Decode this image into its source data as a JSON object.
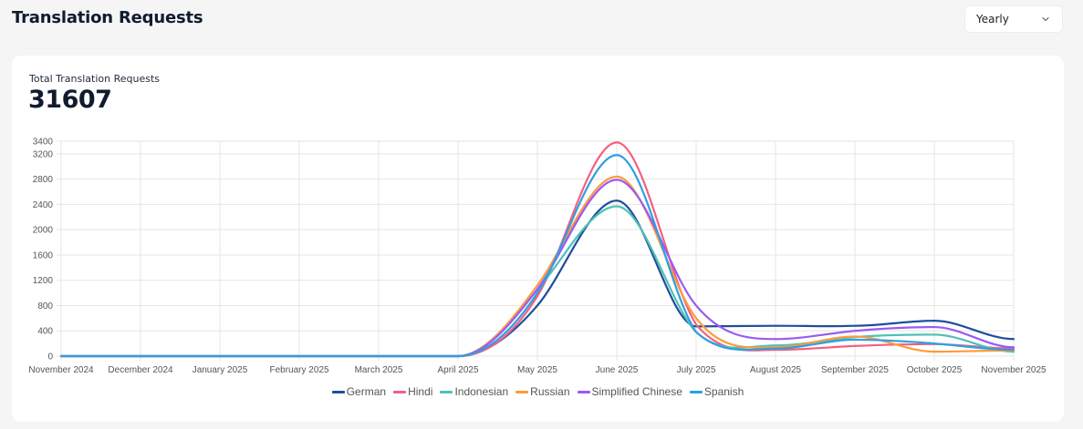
{
  "header": {
    "title": "Translation Requests",
    "period_select": {
      "value": "Yearly",
      "icon": "chevron-down-icon"
    }
  },
  "card": {
    "kpi_label": "Total Translation Requests",
    "kpi_value": "31607"
  },
  "chart_data": {
    "type": "line",
    "title": "",
    "xlabel": "",
    "ylabel": "",
    "ylim": [
      0,
      3400
    ],
    "y_ticks": [
      0,
      400,
      800,
      1200,
      1600,
      2000,
      2400,
      2800,
      3200,
      3400
    ],
    "grid": true,
    "legend_position": "bottom",
    "categories": [
      "November 2024",
      "December 2024",
      "January 2025",
      "February 2025",
      "March 2025",
      "April 2025",
      "May 2025",
      "June 2025",
      "July 2025",
      "August 2025",
      "September 2025",
      "October 2025",
      "November 2025"
    ],
    "series": [
      {
        "name": "German",
        "color": "#1f4e9c",
        "values": [
          0,
          0,
          0,
          0,
          0,
          0,
          800,
          2460,
          470,
          480,
          480,
          560,
          270
        ]
      },
      {
        "name": "Hindi",
        "color": "#f4607f",
        "values": [
          0,
          0,
          0,
          0,
          0,
          0,
          950,
          3380,
          500,
          100,
          160,
          190,
          120
        ]
      },
      {
        "name": "Indonesian",
        "color": "#4fc1b6",
        "values": [
          0,
          0,
          0,
          0,
          0,
          0,
          1050,
          2370,
          380,
          170,
          300,
          340,
          70
        ]
      },
      {
        "name": "Russian",
        "color": "#ff9a3c",
        "values": [
          0,
          0,
          0,
          0,
          0,
          0,
          1120,
          2840,
          600,
          140,
          310,
          70,
          90
        ]
      },
      {
        "name": "Simplified Chinese",
        "color": "#9b59f5",
        "values": [
          0,
          0,
          0,
          0,
          0,
          0,
          1060,
          2790,
          800,
          270,
          400,
          460,
          140
        ]
      },
      {
        "name": "Spanish",
        "color": "#2f9fe0",
        "values": [
          0,
          0,
          0,
          0,
          0,
          0,
          1000,
          3180,
          380,
          120,
          260,
          200,
          100
        ]
      }
    ]
  }
}
